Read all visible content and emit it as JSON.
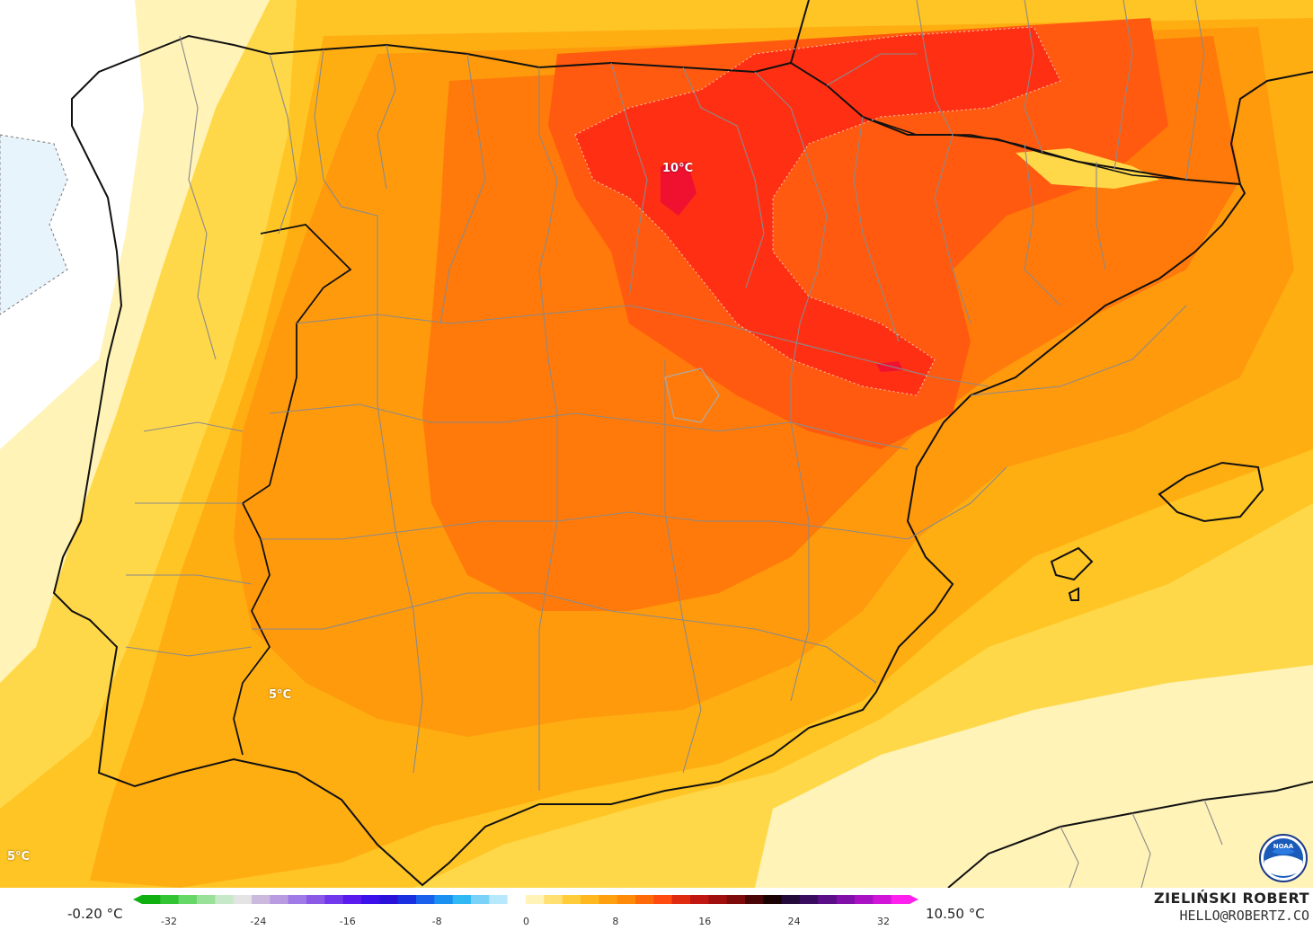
{
  "map": {
    "labels": [
      {
        "id": "label-north-max",
        "text": "10°C"
      },
      {
        "id": "label-southwest",
        "text": "5°C"
      },
      {
        "id": "label-corner",
        "text": "5°C"
      }
    ],
    "colors": {
      "ocean_white": "#ffffff",
      "light_blue": "#e8f4fb",
      "pale_yellow": "#fff3b8",
      "yellow": "#ffd84a",
      "deep_yellow": "#ffc524",
      "orange_yellow": "#ffae12",
      "orange": "#ff9a0d",
      "deep_orange": "#ff7a0a",
      "red_orange": "#ff5a10",
      "red": "#ff2f14",
      "deep_red": "#f01030",
      "coast": "#111111",
      "borders": "#7a7a7a"
    }
  },
  "legend": {
    "min_label": "-0.20 °C",
    "max_label": "10.50 °C",
    "ticks": [
      "-32",
      "-24",
      "-16",
      "-8",
      "0",
      "8",
      "16",
      "24",
      "32"
    ],
    "palette": [
      "#10b010",
      "#33c433",
      "#66d866",
      "#99e099",
      "#c7e9c7",
      "#e4e4e4",
      "#cbb9de",
      "#b79ae0",
      "#a07ae6",
      "#8a5ae6",
      "#7038ea",
      "#5a1aee",
      "#3b10ea",
      "#2a10d8",
      "#1a30e0",
      "#1a60ec",
      "#1a90f0",
      "#30b8f4",
      "#7ad2f8",
      "#b8e8fb",
      "#ffffff",
      "#fff3b8",
      "#ffe070",
      "#ffcc3a",
      "#ffb820",
      "#ffa010",
      "#ff8a0a",
      "#ff6a08",
      "#ff4a10",
      "#e02a10",
      "#c01810",
      "#a00e0e",
      "#7e0a0a",
      "#4a0606",
      "#1a0202",
      "#240a3a",
      "#3a0c60",
      "#5a0e88",
      "#8010a8",
      "#a812c4",
      "#d014d8",
      "#ff20f0"
    ]
  },
  "credits": {
    "name": "ZIELIŃSKI ROBERT",
    "email": "HELLO@ROBERTZ.CO"
  },
  "logo": {
    "icon": "noaa-logo",
    "text": "NOAA"
  }
}
